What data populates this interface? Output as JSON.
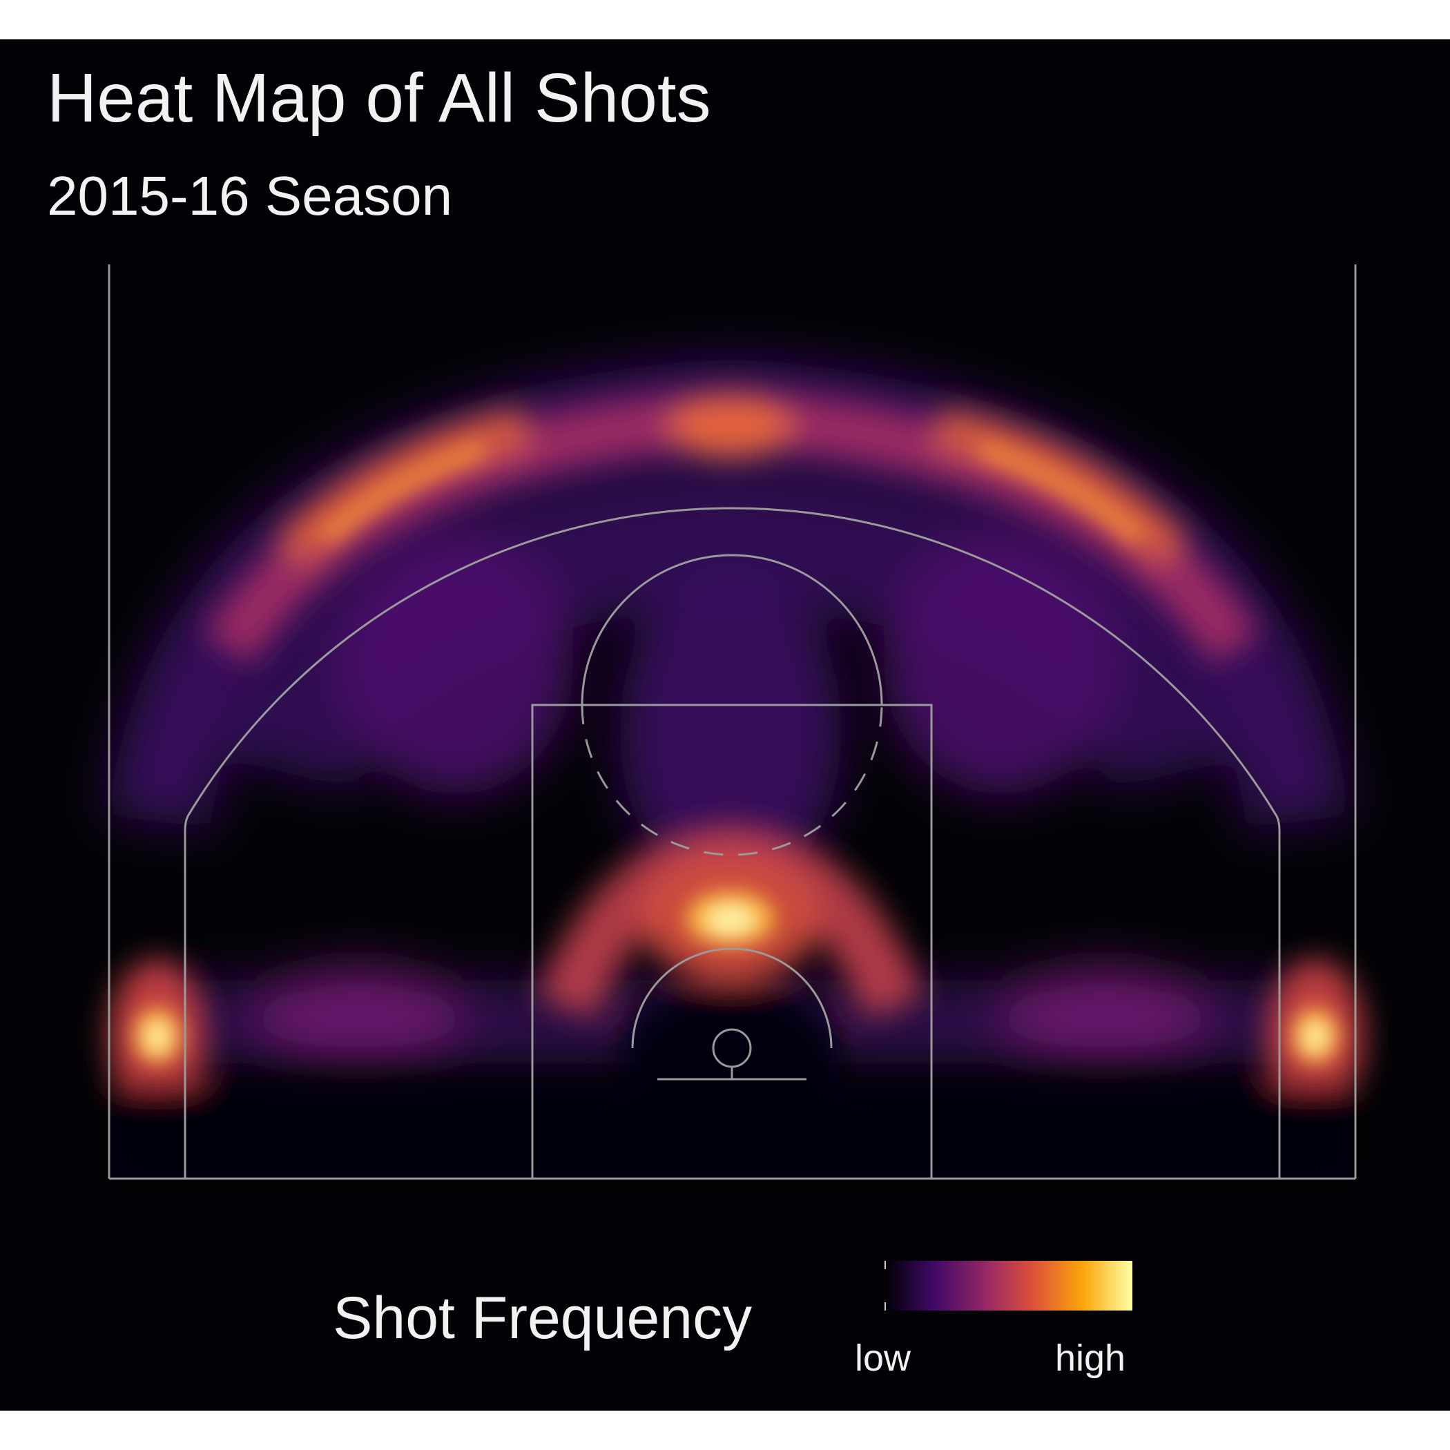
{
  "chart_data": {
    "type": "heatmap",
    "title": "Heat Map of All Shots",
    "subtitle": "2015-16 Season",
    "legend": {
      "title": "Shot Frequency",
      "low_label": "low",
      "high_label": "high",
      "placement": "bottom",
      "colors": [
        "#000004",
        "#420a68",
        "#932667",
        "#dd513a",
        "#fca50a",
        "#fcffa4"
      ]
    },
    "hotspots": [
      {
        "name": "restricted-area",
        "x": 0,
        "y": 4.5,
        "intensity": 1.0
      },
      {
        "name": "left-corner-three",
        "x": -22,
        "y": 2,
        "intensity": 0.95
      },
      {
        "name": "right-corner-three",
        "x": 22,
        "y": 2,
        "intensity": 0.95
      },
      {
        "name": "top-of-key-three",
        "x": 0,
        "y": 29,
        "intensity": 0.55
      },
      {
        "name": "left-wing-three",
        "x": -15,
        "y": 22,
        "intensity": 0.6
      },
      {
        "name": "right-wing-three",
        "x": 15,
        "y": 22,
        "intensity": 0.6
      },
      {
        "name": "left-short-baseline",
        "x": -7,
        "y": 3,
        "intensity": 0.45
      },
      {
        "name": "right-short-baseline",
        "x": 7,
        "y": 3,
        "intensity": 0.45
      },
      {
        "name": "left-elbow-mid",
        "x": -11,
        "y": 16,
        "intensity": 0.25
      },
      {
        "name": "right-elbow-mid",
        "x": 11,
        "y": 16,
        "intensity": 0.25
      }
    ],
    "xlim": [
      -25,
      25
    ],
    "ylim": [
      -4,
      35
    ],
    "grid": false
  }
}
